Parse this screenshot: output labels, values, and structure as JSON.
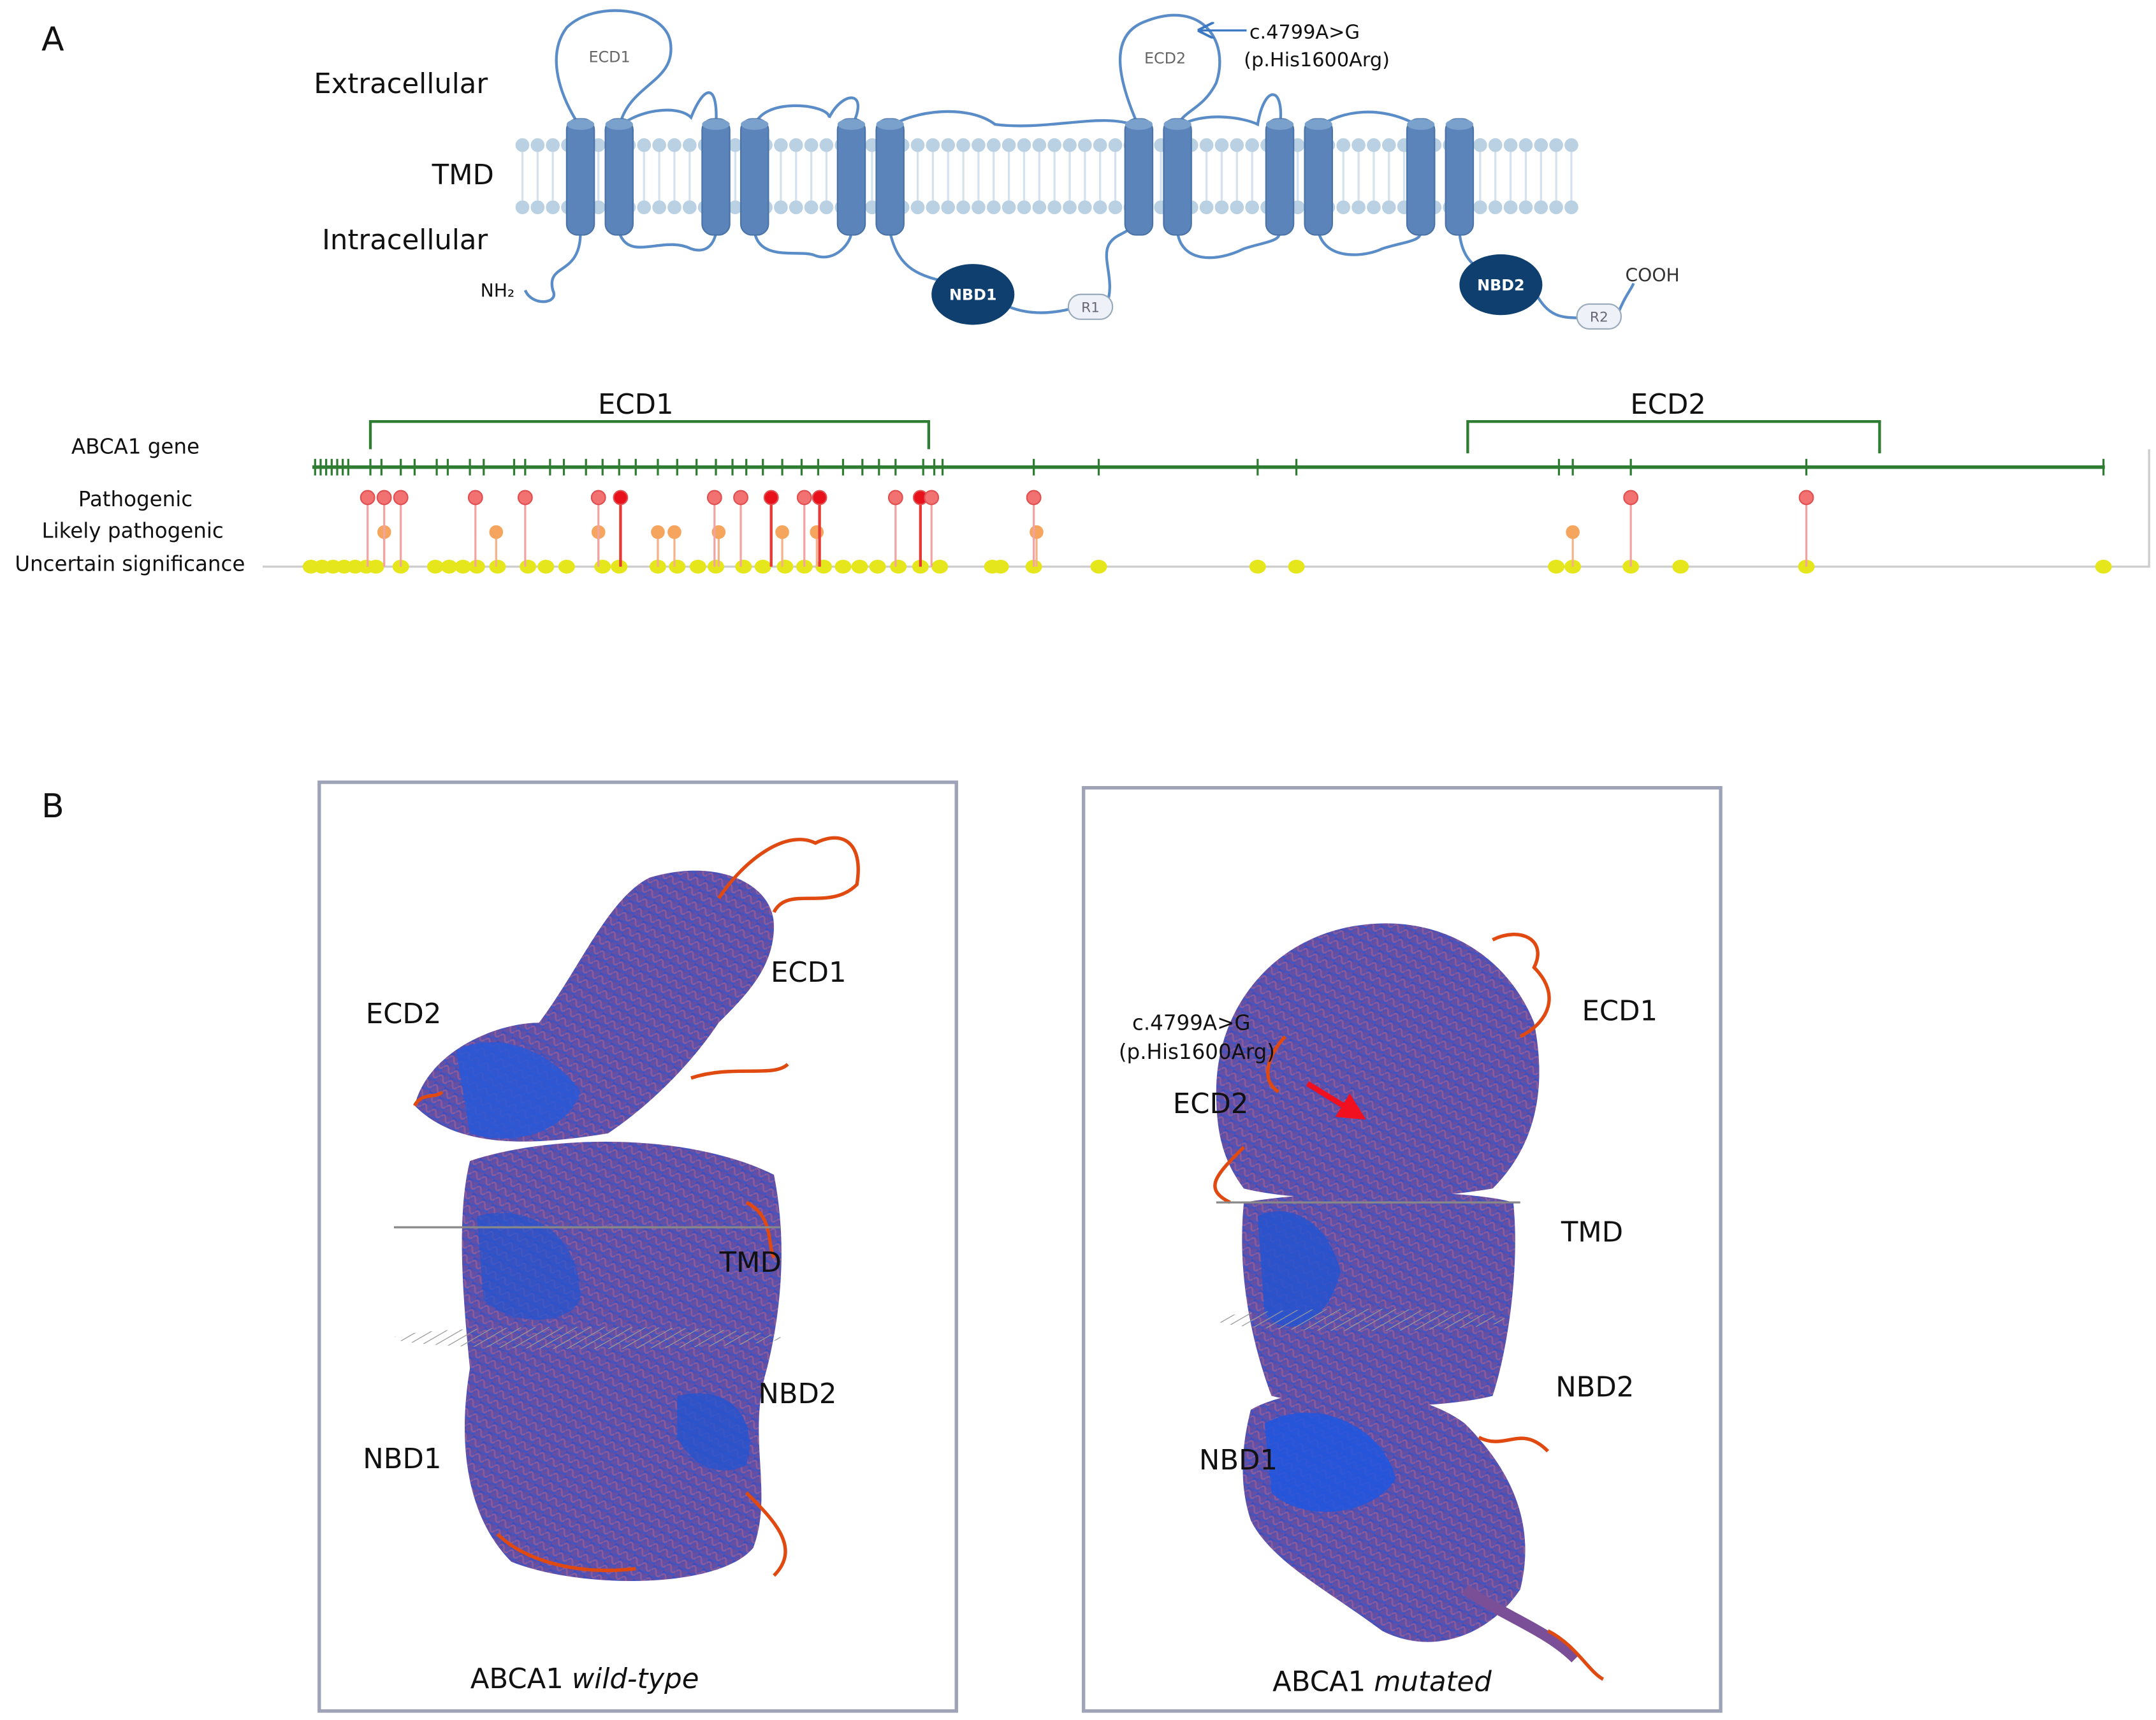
{
  "panel_a": {
    "label": "A",
    "topology": {
      "extracellular": "Extracellular",
      "tmd": "TMD",
      "intracellular": "Intracellular",
      "n_terminus": "NH₂",
      "c_terminus": "COOH",
      "ecd1": "ECD1",
      "ecd2": "ECD2",
      "nbd1": "NBD1",
      "nbd2": "NBD2",
      "r1": "R1",
      "r2": "R2",
      "variant": {
        "cdna": "c.4799A>G",
        "protein": "(p.His1600Arg)"
      }
    },
    "track": {
      "ecd1": "ECD1",
      "ecd2": "ECD2",
      "gene": "ABCA1 gene",
      "pathogenic": "Pathogenic",
      "likely_pathogenic": "Likely pathogenic",
      "uncertain": "Uncertain significance"
    }
  },
  "panel_b": {
    "label": "B",
    "wild_type": {
      "ecd1": "ECD1",
      "ecd2": "ECD2",
      "tmd": "TMD",
      "nbd2": "NBD2",
      "nbd1": "NBD1",
      "caption": {
        "name": "ABCA1",
        "state": "wild-type"
      }
    },
    "mutated": {
      "ecd1": "ECD1",
      "ecd2": "ECD2",
      "tmd": "TMD",
      "nbd2": "NBD2",
      "nbd1": "NBD1",
      "variant": {
        "cdna": "c.4799A>G",
        "protein": "(p.His1600Arg)"
      },
      "caption": {
        "name": "ABCA1",
        "state": "mutated"
      }
    }
  }
}
